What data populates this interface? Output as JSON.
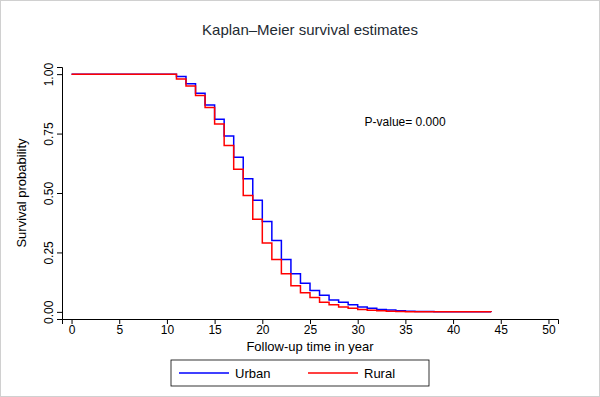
{
  "chart_data": {
    "type": "line",
    "title": "Kaplan–Meier survival estimates",
    "x_label": "Follow-up time in year",
    "y_label": "Survival probability",
    "annotation": "P-value= 0.000",
    "x": [
      0,
      11,
      12,
      13,
      14,
      15,
      16,
      17,
      18,
      19,
      20,
      21,
      22,
      23,
      24,
      25,
      26,
      27,
      28,
      29,
      30,
      31,
      32,
      33,
      34,
      35,
      36,
      37,
      38,
      39,
      40,
      41,
      42,
      43,
      44
    ],
    "series": [
      {
        "name": "Urban",
        "color": "#0000ff",
        "line_style": "step",
        "values": [
          1,
          0.99,
          0.96,
          0.92,
          0.87,
          0.81,
          0.74,
          0.65,
          0.56,
          0.47,
          0.38,
          0.3,
          0.22,
          0.16,
          0.12,
          0.09,
          0.07,
          0.05,
          0.04,
          0.03,
          0.02,
          0.015,
          0.01,
          0.008,
          0.005,
          0.003,
          0.002,
          0.002,
          0.001,
          0.001,
          0.001,
          0.001,
          0.001,
          0.001,
          0
        ]
      },
      {
        "name": "Rural",
        "color": "#ff0000",
        "line_style": "step",
        "values": [
          1,
          0.98,
          0.95,
          0.91,
          0.86,
          0.79,
          0.7,
          0.6,
          0.49,
          0.39,
          0.29,
          0.22,
          0.16,
          0.11,
          0.08,
          0.06,
          0.04,
          0.03,
          0.02,
          0.015,
          0.01,
          0.007,
          0.005,
          0.003,
          0.002,
          0.001,
          0.001,
          0.001,
          0.001,
          0.001,
          0.001,
          0.001,
          0.001,
          0.001,
          0
        ]
      }
    ],
    "xlim": [
      -1,
      51
    ],
    "xticks": [
      0,
      5,
      10,
      15,
      20,
      25,
      30,
      35,
      40,
      45,
      50
    ],
    "ylim": [
      -0.03,
      1.03
    ],
    "yticks": [
      {
        "value": 0,
        "label": "0.00"
      },
      {
        "value": 0.25,
        "label": "0.25"
      },
      {
        "value": 0.5,
        "label": "0.50"
      },
      {
        "value": 0.75,
        "label": "0.75"
      },
      {
        "value": 1,
        "label": "1.00"
      }
    ],
    "grid": false,
    "legend": "bottom"
  }
}
